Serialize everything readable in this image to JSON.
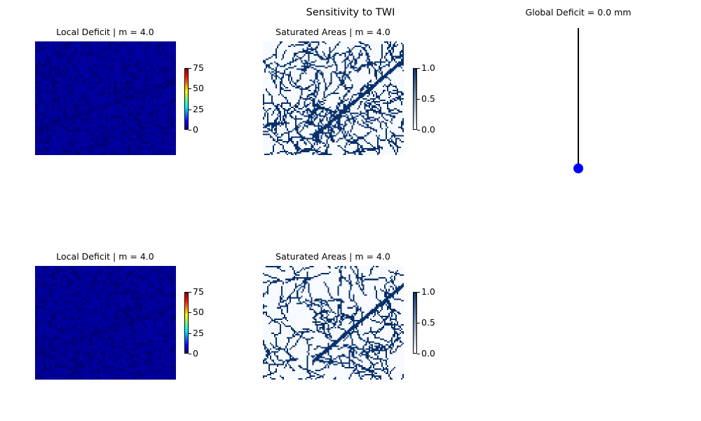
{
  "figure": {
    "suptitle": "Sensitivity to TWI"
  },
  "colors": {
    "marker": "#0000ff",
    "stem": "#000000"
  },
  "chart_data": [
    {
      "type": "heatmap",
      "id": "deficit-top",
      "title": "Local Deficit | m = 4.0",
      "colormap": "jet",
      "clim": [
        0,
        75
      ],
      "colorbar_ticks": [
        "0",
        "25",
        "50",
        "75"
      ],
      "grid": false
    },
    {
      "type": "heatmap",
      "id": "saturated-top",
      "title": "Saturated Areas | m = 4.0",
      "colormap": "Blues",
      "clim": [
        0.0,
        1.0
      ],
      "colorbar_ticks": [
        "0.0",
        "0.5",
        "1.0"
      ],
      "grid": false
    },
    {
      "type": "scatter",
      "id": "global-deficit",
      "title": "Global Deficit = 0.0 mm",
      "x": [
        0
      ],
      "y": [
        0.0
      ],
      "stem": true,
      "axes_visible": false
    },
    {
      "type": "heatmap",
      "id": "deficit-bottom",
      "title": "Local Deficit | m = 4.0",
      "colormap": "jet",
      "clim": [
        0,
        75
      ],
      "colorbar_ticks": [
        "0",
        "25",
        "50",
        "75"
      ],
      "grid": false
    },
    {
      "type": "heatmap",
      "id": "saturated-bottom",
      "title": "Saturated Areas | m = 4.0",
      "colormap": "Blues",
      "clim": [
        0.0,
        1.0
      ],
      "colorbar_ticks": [
        "0.0",
        "0.5",
        "1.0"
      ],
      "grid": false
    }
  ]
}
